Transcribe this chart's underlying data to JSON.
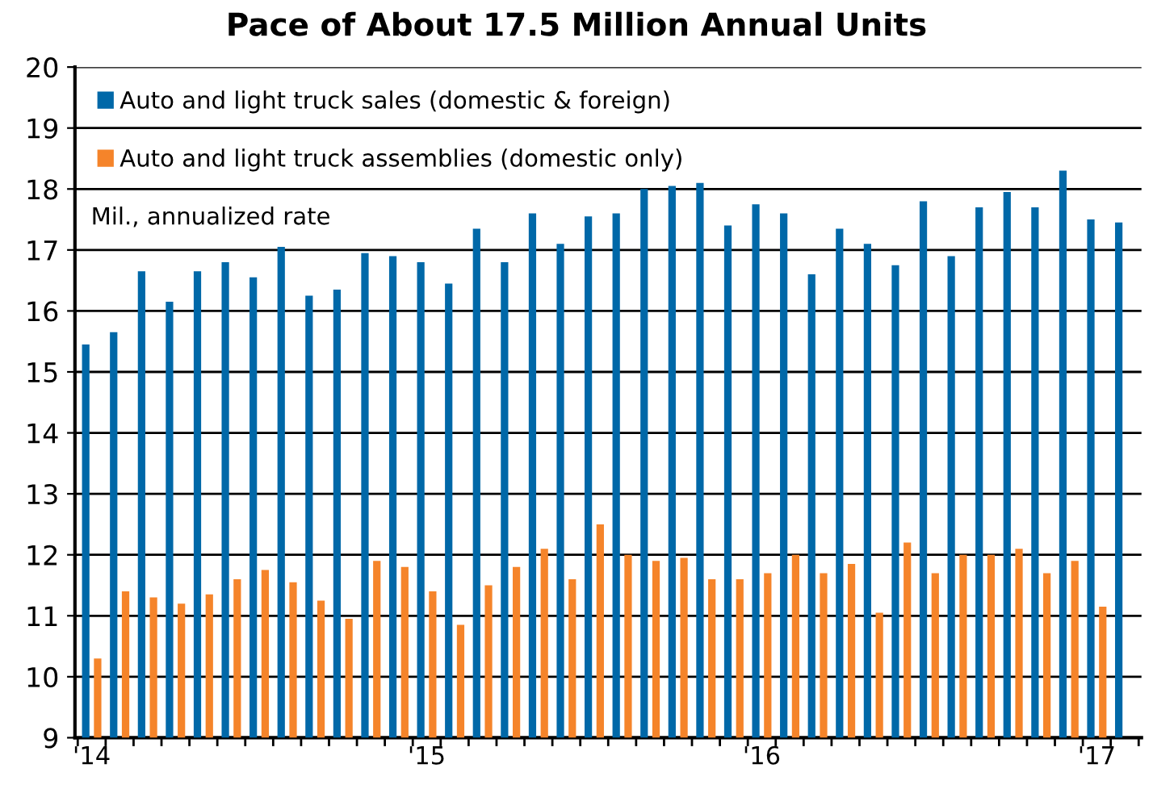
{
  "chart_data": {
    "type": "bar",
    "title": "Pace of About 17.5 Million Annual Units",
    "categories": [
      "'14",
      null,
      null,
      null,
      null,
      null,
      null,
      null,
      null,
      null,
      null,
      null,
      "'15",
      null,
      null,
      null,
      null,
      null,
      null,
      null,
      null,
      null,
      null,
      null,
      "'16",
      null,
      null,
      null,
      null,
      null,
      null,
      null,
      null,
      null,
      null,
      null,
      "'17",
      null
    ],
    "series": [
      {
        "name": "Auto and light truck sales (domestic & foreign)",
        "color": "#0068a8",
        "values": [
          15.45,
          15.65,
          16.65,
          16.15,
          16.65,
          16.8,
          16.55,
          17.05,
          16.25,
          16.35,
          16.95,
          16.9,
          16.8,
          16.45,
          17.35,
          16.8,
          17.6,
          17.1,
          17.55,
          17.6,
          18.0,
          18.05,
          18.1,
          17.4,
          17.75,
          17.6,
          16.6,
          17.35,
          17.1,
          16.75,
          17.8,
          16.9,
          17.7,
          17.95,
          17.7,
          18.3,
          17.5,
          17.45
        ]
      },
      {
        "name": "Auto and light truck assemblies (domestic only)",
        "color": "#f5842a",
        "values": [
          10.3,
          11.4,
          11.3,
          11.2,
          11.35,
          11.6,
          11.75,
          11.55,
          11.25,
          10.95,
          11.9,
          11.8,
          11.4,
          10.85,
          11.5,
          11.8,
          12.1,
          11.6,
          12.5,
          12.0,
          11.9,
          11.95,
          11.6,
          11.6,
          11.7,
          12.0,
          11.7,
          11.85,
          11.05,
          12.2,
          11.7,
          12.0,
          12.0,
          12.1,
          11.7,
          11.9,
          11.15,
          null
        ]
      }
    ],
    "ylim": [
      9,
      20
    ],
    "yticks": [
      9,
      10,
      11,
      12,
      13,
      14,
      15,
      16,
      17,
      18,
      19,
      20
    ],
    "grid": "y",
    "legend": "top left",
    "annotations": [
      "Mil., annualized rate"
    ]
  }
}
